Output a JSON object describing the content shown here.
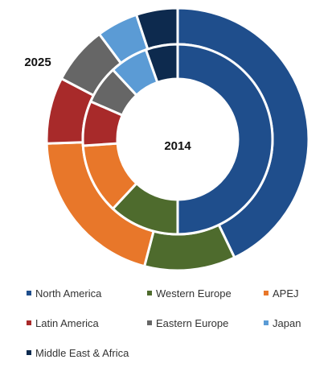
{
  "chart_data": {
    "type": "pie",
    "variant": "nested-donut",
    "categories": [
      "North America",
      "Western Europe",
      "APEJ",
      "Latin America",
      "Eastern Europe",
      "Japan",
      "Middle East & Africa"
    ],
    "colors": [
      "#1F4E8C",
      "#4E6B2D",
      "#E8772A",
      "#A82A2A",
      "#666666",
      "#5B9BD5",
      "#0D2A4E"
    ],
    "series": [
      {
        "name": "2014",
        "ring": "inner",
        "values": [
          46,
          11,
          11,
          7,
          6,
          6,
          5
        ]
      },
      {
        "name": "2025",
        "ring": "outer",
        "values": [
          42,
          11,
          20,
          8,
          7,
          5,
          5
        ]
      }
    ],
    "legend_position": "bottom",
    "legend_columns": 3
  },
  "labels": {
    "inner": "2014",
    "outer": "2025"
  }
}
